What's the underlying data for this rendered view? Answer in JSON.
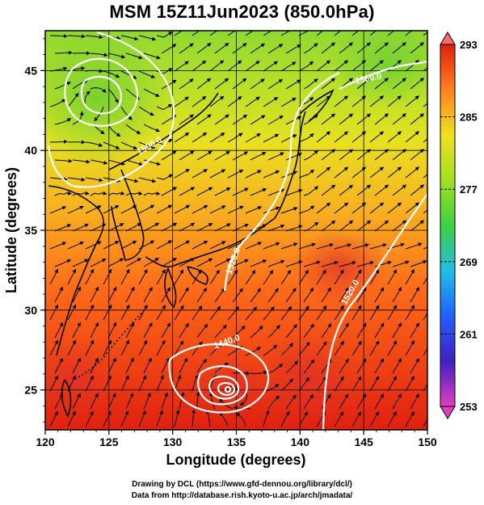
{
  "title": "MSM 15Z11Jun2023 (850.0hPa)",
  "x_axis": {
    "label": "Longitude (degrees)",
    "range": [
      120,
      150
    ],
    "ticks": [
      "120",
      "125",
      "130",
      "135",
      "140",
      "145",
      "150"
    ]
  },
  "y_axis": {
    "label": "Latitude  (degrees)",
    "range": [
      22.5,
      47.5
    ],
    "ticks": [
      "25",
      "30",
      "35",
      "40",
      "45"
    ]
  },
  "colorbar": {
    "range": [
      253,
      293
    ],
    "labels": [
      "293",
      "285",
      "277",
      "269",
      "261",
      "253"
    ],
    "colors": [
      "#e040c0",
      "#4020c0",
      "#2060ff",
      "#20c0e0",
      "#40d040",
      "#a0e020",
      "#f0e020",
      "#ff8020",
      "#e02010"
    ]
  },
  "contour_labels": [
    "1560.0",
    "1500.0",
    "1520.0",
    "1520.0",
    "1440.0"
  ],
  "credits": [
    "Drawing by DCL (https://www.gfd-dennou.org/library/dcl/)",
    "Data from http://database.rish.kyoto-u.ac.jp/arch/jmadata/"
  ]
}
